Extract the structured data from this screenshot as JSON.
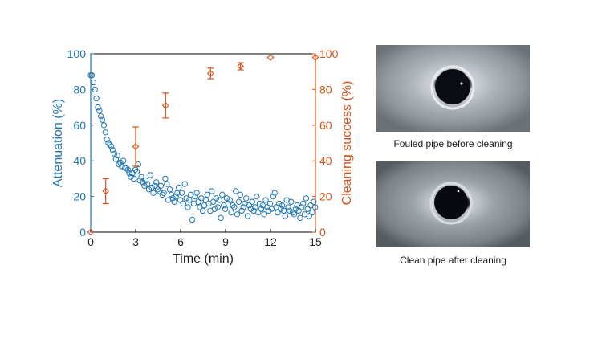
{
  "chart_data": {
    "type": "scatter",
    "x_label": "Time (min)",
    "y_left_label": "Attenuation (%)",
    "y_right_label": "Cleaning success (%)",
    "x_range": [
      0,
      15
    ],
    "y_left_range": [
      0,
      100
    ],
    "y_right_range": [
      0,
      100
    ],
    "x_ticks": [
      "0",
      "3",
      "6",
      "9",
      "12",
      "15"
    ],
    "y_left_ticks": [
      "0",
      "20",
      "40",
      "60",
      "80",
      "100"
    ],
    "y_right_ticks": [
      "0",
      "20",
      "40",
      "60",
      "80",
      "100"
    ],
    "colors": {
      "attenuation": "#1f77b4",
      "cleaning": "#d95319",
      "axis": "#000000"
    },
    "attenuation": {
      "name": "Attenuation",
      "x": [
        0.0,
        0.08,
        0.18,
        0.28,
        0.38,
        0.48,
        0.58,
        0.68,
        0.78,
        0.88,
        0.98,
        1.08,
        1.18,
        1.28,
        1.38,
        1.48,
        1.58,
        1.68,
        1.78,
        1.88,
        1.98,
        2.08,
        2.18,
        2.28,
        2.38,
        2.48,
        2.58,
        2.68,
        2.78,
        2.88,
        2.98,
        3.08,
        3.18,
        3.28,
        3.38,
        3.48,
        3.58,
        3.68,
        3.78,
        3.88,
        3.98,
        4.08,
        4.18,
        4.28,
        4.38,
        4.48,
        4.58,
        4.68,
        4.78,
        4.88,
        4.98,
        5.08,
        5.18,
        5.28,
        5.38,
        5.48,
        5.58,
        5.68,
        5.78,
        5.88,
        5.98,
        6.08,
        6.18,
        6.28,
        6.38,
        6.48,
        6.58,
        6.68,
        6.78,
        6.88,
        6.98,
        7.08,
        7.18,
        7.28,
        7.38,
        7.48,
        7.58,
        7.68,
        7.78,
        7.88,
        7.98,
        8.08,
        8.18,
        8.28,
        8.38,
        8.48,
        8.58,
        8.68,
        8.78,
        8.88,
        8.98,
        9.08,
        9.18,
        9.28,
        9.38,
        9.48,
        9.58,
        9.68,
        9.78,
        9.88,
        9.98,
        10.08,
        10.18,
        10.28,
        10.38,
        10.48,
        10.58,
        10.68,
        10.78,
        10.88,
        10.98,
        11.08,
        11.18,
        11.28,
        11.38,
        11.48,
        11.58,
        11.68,
        11.78,
        11.88,
        11.98,
        12.08,
        12.18,
        12.28,
        12.38,
        12.48,
        12.58,
        12.68,
        12.78,
        12.88,
        12.98,
        13.08,
        13.18,
        13.28,
        13.38,
        13.48,
        13.58,
        13.68,
        13.78,
        13.88,
        13.98,
        14.08,
        14.18,
        14.28,
        14.38,
        14.48,
        14.58,
        14.68,
        14.78,
        14.88,
        14.98
      ],
      "y": [
        88,
        88,
        84,
        80,
        75,
        70,
        68,
        65,
        63,
        60,
        56,
        52,
        50,
        49,
        48,
        46,
        44,
        41,
        43,
        38,
        39,
        37,
        40,
        36,
        36,
        35,
        33,
        31,
        33,
        30,
        35,
        34,
        38,
        29,
        31,
        28,
        26,
        29,
        27,
        24,
        32,
        25,
        22,
        26,
        28,
        24,
        23,
        26,
        21,
        22,
        30,
        27,
        18,
        24,
        21,
        19,
        17,
        20,
        22,
        25,
        18,
        22,
        16,
        27,
        19,
        14,
        18,
        21,
        7,
        16,
        20,
        22,
        17,
        14,
        19,
        12,
        15,
        18,
        21,
        16,
        12,
        23,
        17,
        13,
        19,
        14,
        18,
        8,
        21,
        15,
        13,
        19,
        16,
        18,
        11,
        15,
        14,
        23,
        10,
        17,
        21,
        12,
        14,
        16,
        19,
        9,
        15,
        13,
        17,
        12,
        14,
        20,
        11,
        16,
        13,
        15,
        10,
        18,
        14,
        12,
        16,
        13,
        20,
        22,
        14,
        11,
        16,
        13,
        15,
        12,
        9,
        18,
        14,
        12,
        17,
        11,
        10,
        13,
        15,
        12,
        8,
        14,
        16,
        10,
        19,
        13,
        9,
        15,
        11,
        17,
        14
      ]
    },
    "cleaning": {
      "name": "Cleaning success",
      "x": [
        0,
        1,
        3,
        5,
        8,
        10,
        12,
        15
      ],
      "y": [
        0,
        23,
        48,
        71,
        89,
        93,
        98,
        98
      ],
      "err_low": [
        0,
        7,
        11,
        7,
        3,
        2,
        0,
        0
      ],
      "err_high": [
        0,
        7,
        11,
        7,
        3,
        2,
        0,
        0
      ]
    }
  },
  "figures": [
    {
      "caption": "Fouled pipe before cleaning"
    },
    {
      "caption": "Clean pipe after cleaning"
    }
  ]
}
